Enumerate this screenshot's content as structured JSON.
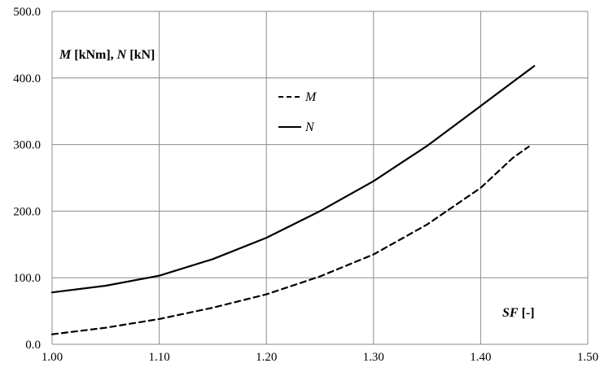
{
  "chart_data": {
    "type": "line",
    "xlim": [
      1.0,
      1.5
    ],
    "ylim": [
      0,
      500
    ],
    "x_ticks": [
      "1.00",
      "1.10",
      "1.20",
      "1.30",
      "1.40",
      "1.50"
    ],
    "y_ticks": [
      "0.0",
      "100.0",
      "200.0",
      "300.0",
      "400.0",
      "500.0"
    ],
    "grid": true,
    "ylabel": {
      "var1": "M",
      "unit1": " [kNm], ",
      "var2": "N",
      "unit2": " [kN]"
    },
    "xlabel": {
      "var": "SF",
      "unit": " [-]"
    },
    "legend_position": "upper-center",
    "series": [
      {
        "name": "M",
        "style": "dashed",
        "color": "#000000",
        "x": [
          1.0,
          1.05,
          1.1,
          1.15,
          1.2,
          1.25,
          1.3,
          1.35,
          1.4,
          1.43,
          1.445
        ],
        "y": [
          15,
          25,
          38,
          55,
          75,
          102,
          135,
          180,
          235,
          280,
          297
        ]
      },
      {
        "name": "N",
        "style": "solid",
        "color": "#000000",
        "x": [
          1.0,
          1.05,
          1.1,
          1.15,
          1.2,
          1.25,
          1.3,
          1.35,
          1.4,
          1.45
        ],
        "y": [
          78,
          88,
          103,
          128,
          160,
          200,
          245,
          298,
          358,
          418
        ]
      }
    ]
  }
}
